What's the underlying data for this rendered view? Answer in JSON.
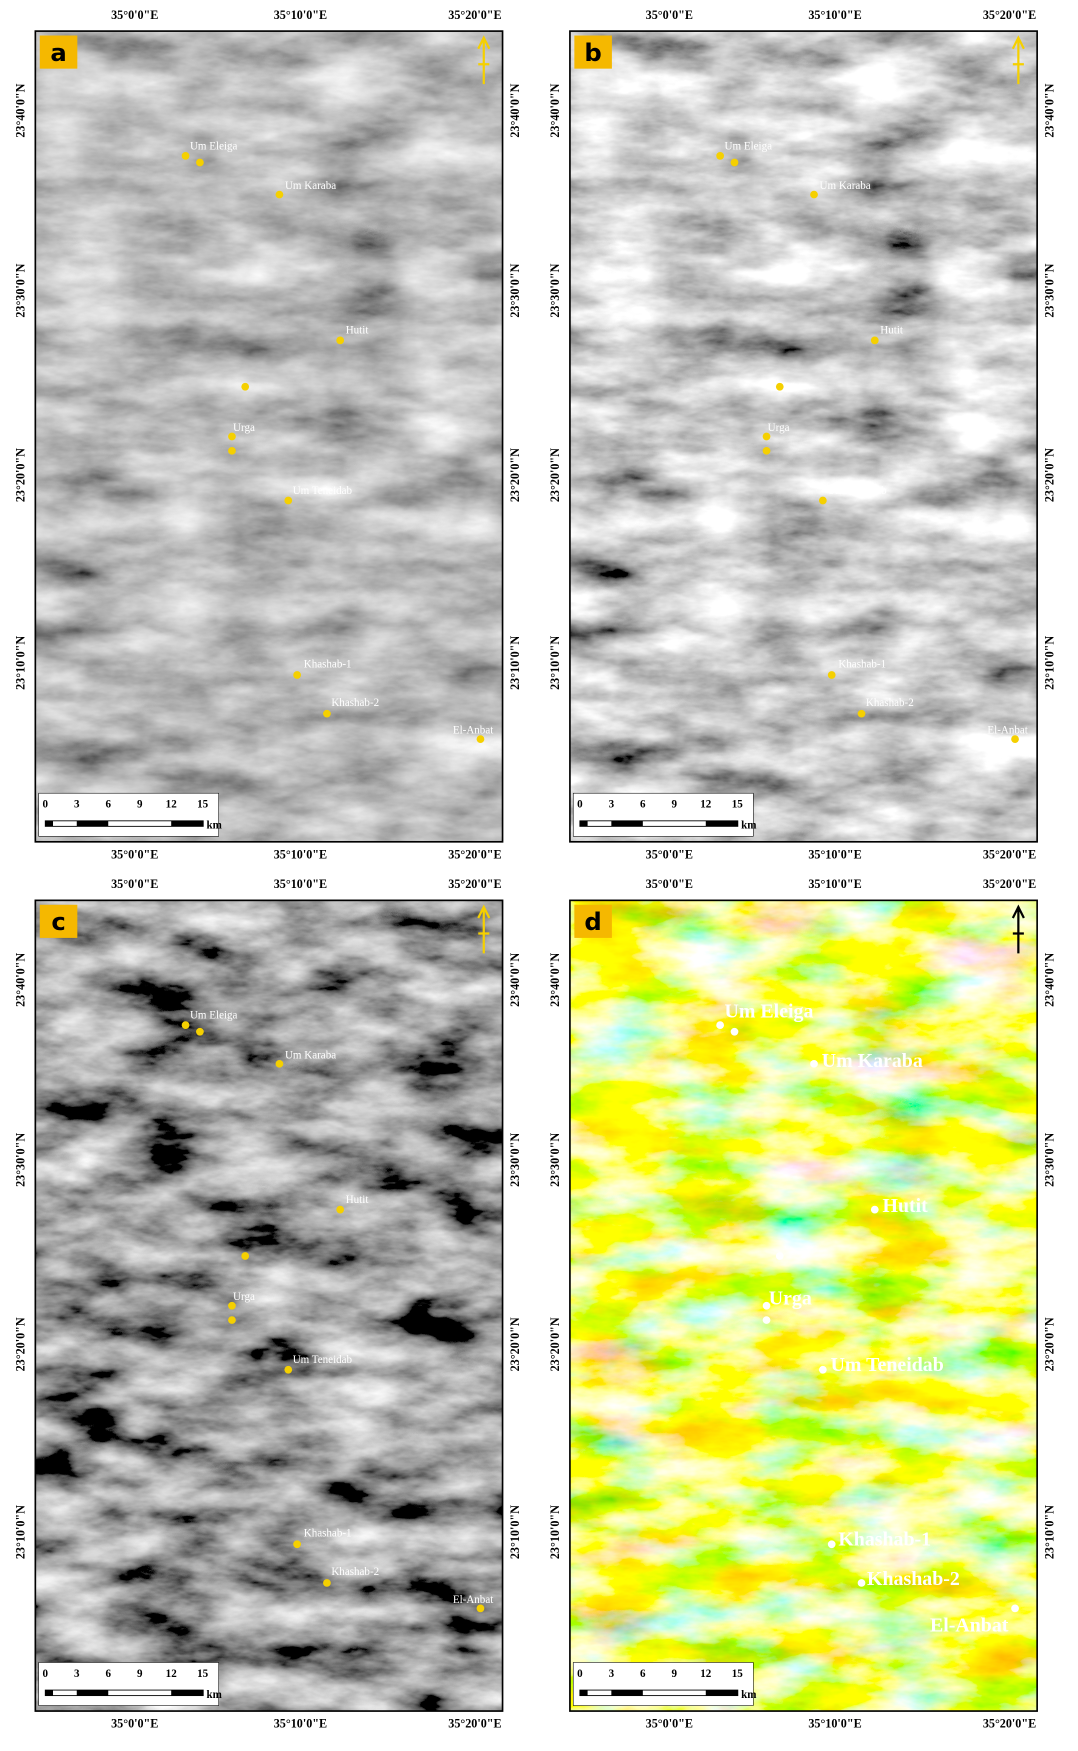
{
  "panels": [
    {
      "label": "a"
    },
    {
      "label": "b"
    },
    {
      "label": "c"
    },
    {
      "label": "d"
    }
  ],
  "places": [
    "Um Eleiga",
    "Um Karaba",
    "Hutit",
    "Urga",
    "Um Teneidab",
    "Khashab-1",
    "Khashab-2",
    "El-Anbat"
  ],
  "lon_labels": [
    "35°0'0\"E",
    "35°10'0\"E",
    "35°20'0\"E"
  ],
  "lat_labels": [
    "23°40'0\"N",
    "23°30'0\"N",
    "23°20'0\"N",
    "23°10'0\"N"
  ],
  "scale_bar": {
    "ticks": [
      "0",
      "3",
      "6",
      "9",
      "12",
      "15"
    ],
    "unit": "km"
  }
}
